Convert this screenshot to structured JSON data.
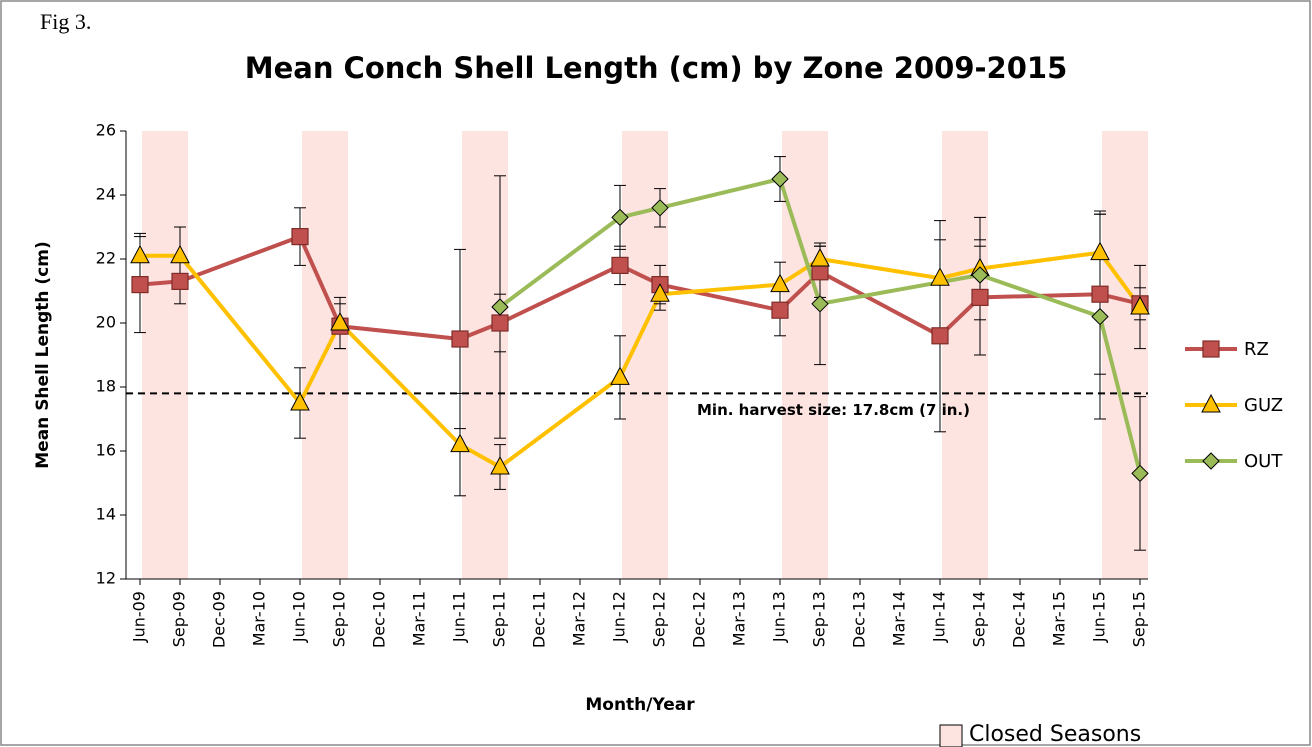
{
  "chart_data": {
    "type": "line",
    "figure_label": "Fig 3.",
    "title": "Mean Conch Shell Length (cm) by Zone 2009-2015",
    "x_label": "Month/Year",
    "y_label": "Mean Shell Length (cm)",
    "categories": [
      "Jun-09",
      "Sep-09",
      "Dec-09",
      "Mar-10",
      "Jun-10",
      "Sep-10",
      "Dec-10",
      "Mar-11",
      "Jun-11",
      "Sep-11",
      "Dec-11",
      "Mar-12",
      "Jun-12",
      "Sep-12",
      "Dec-12",
      "Mar-13",
      "Jun-13",
      "Sep-13",
      "Dec-13",
      "Mar-14",
      "Jun-14",
      "Sep-14",
      "Dec-14",
      "Mar-15",
      "Jun-15",
      "Sep-15"
    ],
    "ylim": [
      12,
      26
    ],
    "yticks": [
      12,
      14,
      16,
      18,
      20,
      22,
      24,
      26
    ],
    "series": [
      {
        "name": "RZ",
        "color": "#c0504d",
        "marker": "square",
        "x": [
          "Jun-09",
          "Sep-09",
          "Jun-10",
          "Sep-10",
          "Jun-11",
          "Sep-11",
          "Jun-12",
          "Sep-12",
          "Jun-13",
          "Sep-13",
          "Jun-14",
          "Sep-14",
          "Jun-15",
          "Sep-15"
        ],
        "values": [
          21.2,
          21.3,
          22.7,
          19.9,
          19.5,
          20.0,
          21.8,
          21.2,
          20.4,
          21.6,
          19.6,
          20.8,
          20.9,
          20.6
        ],
        "errors": [
          1.5,
          0.7,
          0.9,
          0.7,
          2.8,
          0.9,
          0.6,
          0.6,
          0.8,
          0.8,
          3.0,
          1.8,
          2.5,
          0.5
        ]
      },
      {
        "name": "GUZ",
        "color": "#ffc000",
        "marker": "triangle",
        "x": [
          "Jun-09",
          "Sep-09",
          "Jun-10",
          "Sep-10",
          "Jun-11",
          "Sep-11",
          "Jun-12",
          "Sep-12",
          "Jun-13",
          "Sep-13",
          "Jun-14",
          "Sep-14",
          "Jun-15",
          "Sep-15"
        ],
        "values": [
          22.1,
          22.1,
          17.5,
          20.0,
          16.2,
          15.5,
          18.3,
          20.9,
          21.2,
          22.0,
          21.4,
          21.7,
          22.2,
          20.5
        ],
        "errors": [
          0.7,
          0.9,
          1.1,
          0.8,
          1.6,
          0.7,
          1.3,
          0.5,
          0.7,
          0.4,
          1.8,
          1.6,
          1.3,
          1.3
        ]
      },
      {
        "name": "OUT",
        "color": "#9bbb59",
        "marker": "diamond",
        "x": [
          "Sep-11",
          "Jun-12",
          "Sep-12",
          "Jun-13",
          "Sep-13",
          "Sep-14",
          "Jun-15",
          "Sep-15"
        ],
        "values": [
          20.5,
          23.3,
          23.6,
          24.5,
          20.6,
          21.5,
          20.2,
          15.3
        ],
        "errors": [
          4.1,
          1.0,
          0.6,
          0.7,
          1.9,
          0.9,
          3.2,
          2.4
        ]
      }
    ],
    "reference_line": {
      "value": 17.8,
      "label": "Min. harvest size: 17.8cm (7 in.)"
    },
    "closed_seasons": {
      "label": "Closed Seasons",
      "color": "#fde4e1",
      "periods": [
        [
          "Jun-09",
          "Sep-09"
        ],
        [
          "Jun-10",
          "Sep-10"
        ],
        [
          "Jun-11",
          "Sep-11"
        ],
        [
          "Jun-12",
          "Sep-12"
        ],
        [
          "Jun-13",
          "Sep-13"
        ],
        [
          "Jun-14",
          "Sep-14"
        ],
        [
          "Jun-15",
          "Sep-15"
        ]
      ]
    }
  }
}
